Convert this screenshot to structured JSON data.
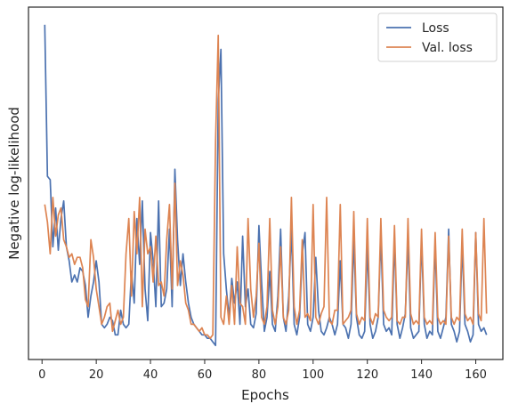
{
  "chart_data": {
    "type": "line",
    "title": "",
    "xlabel": "Epochs",
    "ylabel": "Negative log-likelihood",
    "xlim": [
      -5,
      170
    ],
    "ylim": [
      0,
      100
    ],
    "grid": false,
    "legend_position": "top-right",
    "xticks": [
      0,
      20,
      40,
      60,
      80,
      100,
      120,
      140,
      160
    ],
    "series": [
      {
        "name": "Loss",
        "color": "#4c72b0",
        "points": [
          [
            1,
            95
          ],
          [
            2,
            52
          ],
          [
            3,
            51
          ],
          [
            4,
            32
          ],
          [
            5,
            43
          ],
          [
            6,
            31
          ],
          [
            7,
            40
          ],
          [
            8,
            45
          ],
          [
            9,
            32
          ],
          [
            10,
            28
          ],
          [
            11,
            22
          ],
          [
            12,
            24
          ],
          [
            13,
            22
          ],
          [
            14,
            26
          ],
          [
            15,
            25
          ],
          [
            16,
            21
          ],
          [
            17,
            12
          ],
          [
            18,
            18
          ],
          [
            19,
            22
          ],
          [
            20,
            28
          ],
          [
            21,
            22
          ],
          [
            22,
            10
          ],
          [
            23,
            9
          ],
          [
            24,
            10
          ],
          [
            25,
            12
          ],
          [
            26,
            11
          ],
          [
            27,
            7
          ],
          [
            28,
            7
          ],
          [
            29,
            14
          ],
          [
            30,
            10
          ],
          [
            31,
            9
          ],
          [
            32,
            10
          ],
          [
            33,
            25
          ],
          [
            34,
            16
          ],
          [
            35,
            40
          ],
          [
            36,
            27
          ],
          [
            37,
            45
          ],
          [
            38,
            20
          ],
          [
            39,
            11
          ],
          [
            40,
            36
          ],
          [
            41,
            28
          ],
          [
            42,
            15
          ],
          [
            43,
            45
          ],
          [
            44,
            15
          ],
          [
            45,
            16
          ],
          [
            46,
            20
          ],
          [
            47,
            37
          ],
          [
            48,
            15
          ],
          [
            49,
            54
          ],
          [
            50,
            34
          ],
          [
            51,
            21
          ],
          [
            52,
            30
          ],
          [
            53,
            22
          ],
          [
            54,
            16
          ],
          [
            55,
            12
          ],
          [
            56,
            10
          ],
          [
            57,
            9
          ],
          [
            58,
            8
          ],
          [
            59,
            7
          ],
          [
            60,
            7
          ],
          [
            61,
            6
          ],
          [
            62,
            6
          ],
          [
            63,
            5
          ],
          [
            64,
            4
          ],
          [
            65,
            73
          ],
          [
            66,
            88
          ],
          [
            67,
            30
          ],
          [
            68,
            20
          ],
          [
            69,
            12
          ],
          [
            70,
            23
          ],
          [
            71,
            16
          ],
          [
            72,
            22
          ],
          [
            73,
            10
          ],
          [
            74,
            35
          ],
          [
            75,
            15
          ],
          [
            76,
            20
          ],
          [
            77,
            10
          ],
          [
            78,
            9
          ],
          [
            79,
            13
          ],
          [
            80,
            38
          ],
          [
            81,
            22
          ],
          [
            82,
            8
          ],
          [
            83,
            12
          ],
          [
            84,
            25
          ],
          [
            85,
            10
          ],
          [
            86,
            8
          ],
          [
            87,
            18
          ],
          [
            88,
            37
          ],
          [
            89,
            12
          ],
          [
            90,
            8
          ],
          [
            91,
            18
          ],
          [
            92,
            37
          ],
          [
            93,
            10
          ],
          [
            94,
            7
          ],
          [
            95,
            12
          ],
          [
            96,
            30
          ],
          [
            97,
            36
          ],
          [
            98,
            10
          ],
          [
            99,
            8
          ],
          [
            100,
            12
          ],
          [
            101,
            29
          ],
          [
            102,
            14
          ],
          [
            103,
            8
          ],
          [
            104,
            7
          ],
          [
            105,
            9
          ],
          [
            106,
            12
          ],
          [
            107,
            10
          ],
          [
            108,
            7
          ],
          [
            109,
            10
          ],
          [
            110,
            28
          ],
          [
            111,
            10
          ],
          [
            112,
            9
          ],
          [
            113,
            6
          ],
          [
            114,
            10
          ],
          [
            115,
            34
          ],
          [
            116,
            12
          ],
          [
            117,
            7
          ],
          [
            118,
            6
          ],
          [
            119,
            8
          ],
          [
            120,
            32
          ],
          [
            121,
            10
          ],
          [
            122,
            6
          ],
          [
            123,
            8
          ],
          [
            124,
            12
          ],
          [
            125,
            35
          ],
          [
            126,
            10
          ],
          [
            127,
            8
          ],
          [
            128,
            9
          ],
          [
            129,
            7
          ],
          [
            130,
            34
          ],
          [
            131,
            10
          ],
          [
            132,
            6
          ],
          [
            133,
            9
          ],
          [
            134,
            13
          ],
          [
            135,
            34
          ],
          [
            136,
            9
          ],
          [
            137,
            6
          ],
          [
            138,
            7
          ],
          [
            139,
            8
          ],
          [
            140,
            34
          ],
          [
            141,
            10
          ],
          [
            142,
            6
          ],
          [
            143,
            8
          ],
          [
            144,
            7
          ],
          [
            145,
            33
          ],
          [
            146,
            8
          ],
          [
            147,
            6
          ],
          [
            148,
            9
          ],
          [
            149,
            12
          ],
          [
            150,
            37
          ],
          [
            151,
            10
          ],
          [
            152,
            8
          ],
          [
            153,
            5
          ],
          [
            154,
            8
          ],
          [
            155,
            33
          ],
          [
            156,
            10
          ],
          [
            157,
            8
          ],
          [
            158,
            5
          ],
          [
            159,
            7
          ],
          [
            160,
            36
          ],
          [
            161,
            10
          ],
          [
            162,
            8
          ],
          [
            163,
            9
          ],
          [
            164,
            7
          ]
        ]
      },
      {
        "name": "Val. loss",
        "color": "#dd8452",
        "points": [
          [
            1,
            44
          ],
          [
            2,
            39
          ],
          [
            3,
            30
          ],
          [
            4,
            46
          ],
          [
            5,
            35
          ],
          [
            6,
            41
          ],
          [
            7,
            43
          ],
          [
            8,
            34
          ],
          [
            9,
            32
          ],
          [
            10,
            29
          ],
          [
            11,
            30
          ],
          [
            12,
            27
          ],
          [
            13,
            29
          ],
          [
            14,
            29
          ],
          [
            15,
            26
          ],
          [
            16,
            17
          ],
          [
            17,
            15
          ],
          [
            18,
            34
          ],
          [
            19,
            29
          ],
          [
            20,
            20
          ],
          [
            21,
            15
          ],
          [
            22,
            10
          ],
          [
            23,
            12
          ],
          [
            24,
            15
          ],
          [
            25,
            16
          ],
          [
            26,
            8
          ],
          [
            27,
            11
          ],
          [
            28,
            14
          ],
          [
            29,
            10
          ],
          [
            30,
            12
          ],
          [
            31,
            30
          ],
          [
            32,
            40
          ],
          [
            33,
            18
          ],
          [
            34,
            42
          ],
          [
            35,
            30
          ],
          [
            36,
            46
          ],
          [
            37,
            15
          ],
          [
            38,
            37
          ],
          [
            39,
            30
          ],
          [
            40,
            32
          ],
          [
            41,
            22
          ],
          [
            42,
            35
          ],
          [
            43,
            21
          ],
          [
            44,
            22
          ],
          [
            45,
            18
          ],
          [
            46,
            34
          ],
          [
            47,
            44
          ],
          [
            48,
            20
          ],
          [
            49,
            50
          ],
          [
            50,
            21
          ],
          [
            51,
            28
          ],
          [
            52,
            24
          ],
          [
            53,
            16
          ],
          [
            54,
            14
          ],
          [
            55,
            10
          ],
          [
            56,
            10
          ],
          [
            57,
            9
          ],
          [
            58,
            8
          ],
          [
            59,
            9
          ],
          [
            60,
            7
          ],
          [
            61,
            7
          ],
          [
            62,
            6
          ],
          [
            63,
            7
          ],
          [
            64,
            62
          ],
          [
            65,
            92
          ],
          [
            66,
            12
          ],
          [
            67,
            10
          ],
          [
            68,
            18
          ],
          [
            69,
            10
          ],
          [
            70,
            21
          ],
          [
            71,
            10
          ],
          [
            72,
            32
          ],
          [
            73,
            16
          ],
          [
            74,
            15
          ],
          [
            75,
            10
          ],
          [
            76,
            40
          ],
          [
            77,
            20
          ],
          [
            78,
            12
          ],
          [
            79,
            18
          ],
          [
            80,
            33
          ],
          [
            81,
            12
          ],
          [
            82,
            10
          ],
          [
            83,
            15
          ],
          [
            84,
            40
          ],
          [
            85,
            14
          ],
          [
            86,
            10
          ],
          [
            87,
            15
          ],
          [
            88,
            32
          ],
          [
            89,
            12
          ],
          [
            90,
            10
          ],
          [
            91,
            14
          ],
          [
            92,
            46
          ],
          [
            93,
            15
          ],
          [
            94,
            10
          ],
          [
            95,
            14
          ],
          [
            96,
            34
          ],
          [
            97,
            12
          ],
          [
            98,
            13
          ],
          [
            99,
            11
          ],
          [
            100,
            44
          ],
          [
            101,
            12
          ],
          [
            102,
            10
          ],
          [
            103,
            13
          ],
          [
            104,
            15
          ],
          [
            105,
            46
          ],
          [
            106,
            11
          ],
          [
            107,
            10
          ],
          [
            108,
            14
          ],
          [
            109,
            14
          ],
          [
            110,
            44
          ],
          [
            111,
            10
          ],
          [
            112,
            11
          ],
          [
            113,
            12
          ],
          [
            114,
            14
          ],
          [
            115,
            42
          ],
          [
            116,
            13
          ],
          [
            117,
            10
          ],
          [
            118,
            12
          ],
          [
            119,
            11
          ],
          [
            120,
            40
          ],
          [
            121,
            12
          ],
          [
            122,
            10
          ],
          [
            123,
            13
          ],
          [
            124,
            12
          ],
          [
            125,
            40
          ],
          [
            126,
            14
          ],
          [
            127,
            12
          ],
          [
            128,
            11
          ],
          [
            129,
            12
          ],
          [
            130,
            38
          ],
          [
            131,
            11
          ],
          [
            132,
            10
          ],
          [
            133,
            12
          ],
          [
            134,
            12
          ],
          [
            135,
            40
          ],
          [
            136,
            13
          ],
          [
            137,
            10
          ],
          [
            138,
            11
          ],
          [
            139,
            10
          ],
          [
            140,
            37
          ],
          [
            141,
            12
          ],
          [
            142,
            10
          ],
          [
            143,
            11
          ],
          [
            144,
            10
          ],
          [
            145,
            36
          ],
          [
            146,
            12
          ],
          [
            147,
            10
          ],
          [
            148,
            11
          ],
          [
            149,
            10
          ],
          [
            150,
            35
          ],
          [
            151,
            12
          ],
          [
            152,
            10
          ],
          [
            153,
            12
          ],
          [
            154,
            11
          ],
          [
            155,
            37
          ],
          [
            156,
            13
          ],
          [
            157,
            11
          ],
          [
            158,
            12
          ],
          [
            159,
            10
          ],
          [
            160,
            36
          ],
          [
            161,
            13
          ],
          [
            162,
            11
          ],
          [
            163,
            40
          ],
          [
            164,
            13
          ]
        ]
      }
    ]
  }
}
